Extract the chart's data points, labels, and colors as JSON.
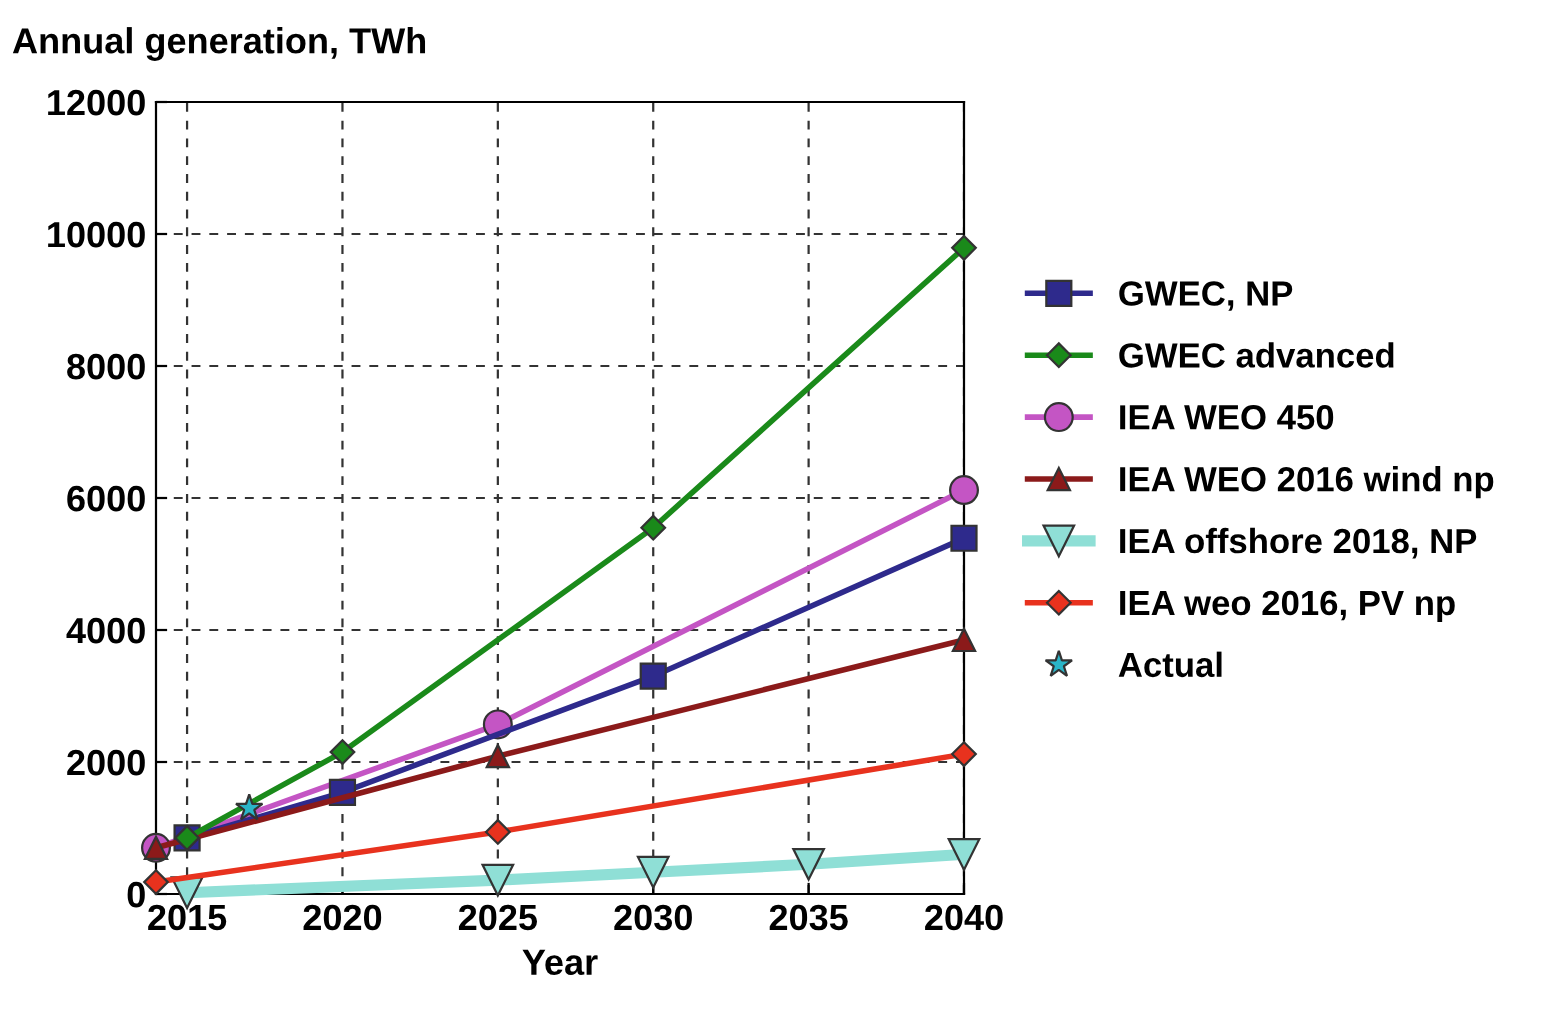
{
  "chart_data": {
    "type": "line",
    "ylabel": "Annual generation, TWh",
    "xlabel": "Year",
    "xlim": [
      2014,
      2040
    ],
    "xticks": [
      2015,
      2020,
      2025,
      2030,
      2035,
      2040
    ],
    "ylim": [
      0,
      12000
    ],
    "yticks": [
      0,
      2000,
      4000,
      6000,
      8000,
      10000,
      12000
    ],
    "grid": true,
    "legend": "right",
    "series": [
      {
        "name": "GWEC, NP",
        "color": "#2e2a8c",
        "marker": "square",
        "x": [
          2015,
          2020,
          2030,
          2040
        ],
        "values": [
          850,
          1540,
          3300,
          5390
        ]
      },
      {
        "name": "GWEC advanced",
        "color": "#1a8a1a",
        "marker": "diamond",
        "x": [
          2015,
          2020,
          2030,
          2040
        ],
        "values": [
          850,
          2150,
          5550,
          9790
        ]
      },
      {
        "name": "IEA WEO 450",
        "color": "#c455c4",
        "marker": "circle",
        "x": [
          2014,
          2025,
          2040
        ],
        "values": [
          700,
          2570,
          6120
        ]
      },
      {
        "name": "IEA WEO 2016 wind np",
        "color": "#8b1a1a",
        "marker": "triangle",
        "x": [
          2014,
          2025,
          2040
        ],
        "values": [
          700,
          2090,
          3850
        ]
      },
      {
        "name": "IEA offshore 2018, NP",
        "color": "#8fdfd6",
        "marker": "triangle_down",
        "x": [
          2015,
          2025,
          2030,
          2035,
          2040
        ],
        "values": [
          20,
          210,
          330,
          450,
          600
        ]
      },
      {
        "name": "IEA weo 2016, PV np",
        "color": "#e8321e",
        "marker": "diamond",
        "x": [
          2014,
          2025,
          2040
        ],
        "values": [
          180,
          940,
          2120
        ]
      },
      {
        "name": "Actual",
        "color": "#2ab5c8",
        "marker": "star",
        "type": "scatter",
        "x": [
          2017
        ],
        "values": [
          1300
        ]
      }
    ]
  }
}
